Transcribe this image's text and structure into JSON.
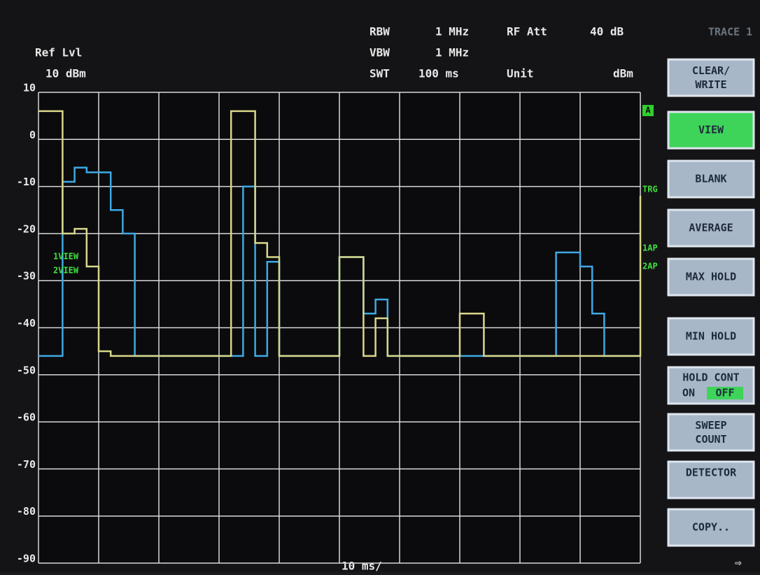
{
  "header": {
    "ref_level_label": "Ref Lvl",
    "ref_level": "10 dBm",
    "rbw_label": "RBW",
    "rbw": "1 MHz",
    "vbw_label": "VBW",
    "vbw": "1 MHz",
    "swt_label": "SWT",
    "swt": "100 ms",
    "rf_att_label": "RF Att",
    "rf_att": "40 dB",
    "unit_label": "Unit",
    "unit": "dBm",
    "trace": "TRACE 1"
  },
  "side_markers": {
    "a": "A",
    "trg": "TRG",
    "ap1": "1AP",
    "ap2": "2AP"
  },
  "softkeys": [
    {
      "label": "CLEAR/ WRITE"
    },
    {
      "label": "VIEW"
    },
    {
      "label": "BLANK"
    },
    {
      "label": "AVERAGE"
    },
    {
      "label": "MAX HOLD"
    },
    {
      "label": "MIN HOLD"
    },
    {
      "label": "HOLD CONT",
      "on": "ON",
      "off": "OFF"
    },
    {
      "label": "SWEEP COUNT"
    },
    {
      "label": "DETECTOR"
    },
    {
      "label": "COPY.."
    }
  ],
  "chart_data": {
    "type": "line",
    "x_label": "10 ms/",
    "xlim": [
      0,
      100
    ],
    "ylim": [
      -90,
      10
    ],
    "yticks": [
      10,
      0,
      -10,
      -20,
      -30,
      -40,
      -50,
      -60,
      -70,
      -80,
      -90
    ],
    "grid": true,
    "x": [
      0,
      2,
      4,
      6,
      8,
      10,
      12,
      14,
      16,
      18,
      20,
      22,
      24,
      26,
      28,
      30,
      32,
      34,
      36,
      38,
      40,
      42,
      44,
      46,
      48,
      50,
      52,
      54,
      56,
      58,
      60,
      62,
      64,
      66,
      68,
      70,
      72,
      74,
      76,
      78,
      80,
      82,
      84,
      86,
      88,
      90,
      92,
      94,
      96,
      98,
      100
    ],
    "series": [
      {
        "name": "1VIEW",
        "color": "#3ea9e4",
        "values": [
          -46,
          -46,
          -9,
          -6,
          -7,
          -7,
          -15,
          -20,
          -46,
          -46,
          -46,
          -46,
          -46,
          -46,
          -46,
          -46,
          -46,
          -10,
          -46,
          -26,
          -46,
          -46,
          -46,
          -46,
          -46,
          -25,
          -25,
          -37,
          -34,
          -46,
          -46,
          -46,
          -46,
          -46,
          -46,
          -46,
          -46,
          -46,
          -46,
          -46,
          -46,
          -46,
          -46,
          -24,
          -24,
          -27,
          -37,
          -46,
          -46,
          -46,
          -46
        ]
      },
      {
        "name": "2VIEW",
        "color": "#d8d78a",
        "values": [
          6,
          6,
          -20,
          -19,
          -27,
          -45,
          -46,
          -46,
          -46,
          -46,
          -46,
          -46,
          -46,
          -46,
          -46,
          -46,
          6,
          6,
          -22,
          -25,
          -46,
          -46,
          -46,
          -46,
          -46,
          -25,
          -25,
          -46,
          -38,
          -46,
          -46,
          -46,
          -46,
          -46,
          -46,
          -37,
          -37,
          -46,
          -46,
          -46,
          -46,
          -46,
          -46,
          -46,
          -46,
          -46,
          -46,
          -46,
          -46,
          -46,
          -12
        ]
      }
    ]
  }
}
